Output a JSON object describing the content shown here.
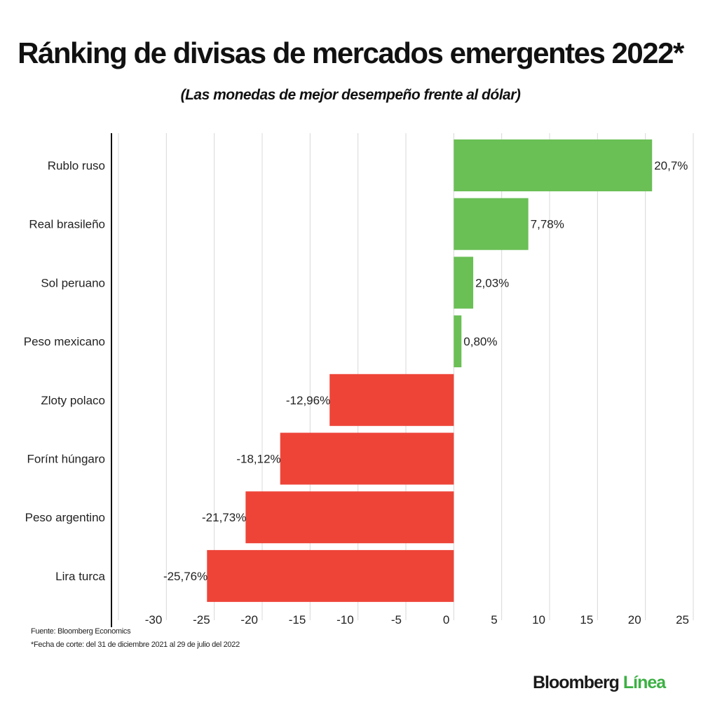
{
  "title": "Ránking de divisas de mercados emergentes 2022*",
  "subtitle": "(Las monedas de mejor desempeño frente al dólar)",
  "footer": {
    "source": "Fuente: Bloomberg Economics",
    "note": "*Fecha de corte: del 31 de diciembre 2021 al 29 de julio del 2022"
  },
  "logo": {
    "main": "Bloomberg",
    "accent": "Línea"
  },
  "chart_data": {
    "type": "bar",
    "orientation": "horizontal",
    "categories": [
      "Rublo ruso",
      "Real brasileño",
      "Sol peruano",
      "Peso mexicano",
      "Zloty polaco",
      "Forínt húngaro",
      "Peso argentino",
      "Lira turca"
    ],
    "values": [
      20.7,
      7.78,
      2.03,
      0.8,
      -12.96,
      -18.12,
      -21.73,
      -25.76
    ],
    "data_labels": [
      "20,7%",
      "7,78%",
      "2,03%",
      "0,80%",
      "-12,96%",
      "-18,12%",
      "-21,73%",
      "-25,76%"
    ],
    "xlim": [
      -35,
      25
    ],
    "xticks": [
      -30,
      -25,
      -20,
      -15,
      -10,
      -5,
      0,
      5,
      10,
      15,
      20,
      25
    ],
    "grid": true,
    "colors": {
      "positive": "#6abf55",
      "negative": "#ee4438"
    }
  }
}
